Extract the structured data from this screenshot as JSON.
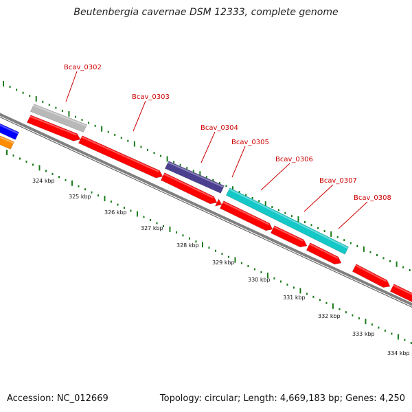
{
  "title": "Beutenbergia cavernae DSM 12333, complete genome",
  "accession": "Accession: NC_012669",
  "topology": "Topology: circular; Length: 4,669,183 bp; Genes: 4,250",
  "colors": {
    "gene_forward": "#ff0000",
    "gene_grey": "#b8b8b8",
    "gene_purple": "#4b3f8f",
    "gene_cyan": "#14c8c8",
    "gene_blue": "#0000ff",
    "gene_orange": "#ff8c00",
    "label": "#cc0000",
    "tick": "#1a7a1a",
    "backbone": "#808080"
  },
  "gene_labels": [
    "Bcav_0302",
    "Bcav_0303",
    "Bcav_0304",
    "Bcav_0305",
    "Bcav_0306",
    "Bcav_0307",
    "Bcav_0308"
  ],
  "scale_labels": [
    "324 kbp",
    "325 kbp",
    "326 kbp",
    "327 kbp",
    "328 kbp",
    "329 kbp",
    "330 kbp",
    "331 kbp",
    "332 kbp",
    "333 kbp",
    "334 kbp"
  ]
}
